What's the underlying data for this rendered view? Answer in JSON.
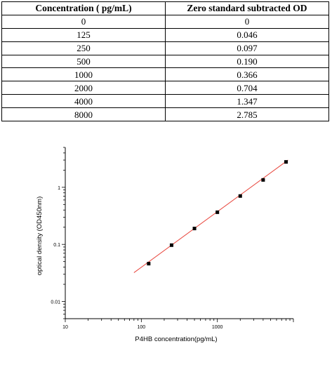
{
  "table": {
    "headers": [
      "Concentration ( pg/mL)",
      "Zero standard subtracted OD"
    ],
    "rows": [
      [
        "0",
        "0"
      ],
      [
        "125",
        "0.046"
      ],
      [
        "250",
        "0.097"
      ],
      [
        "500",
        "0.190"
      ],
      [
        "1000",
        "0.366"
      ],
      [
        "2000",
        "0.704"
      ],
      [
        "4000",
        "1.347"
      ],
      [
        "8000",
        "2.785"
      ]
    ]
  },
  "chart_data": {
    "type": "scatter",
    "xlabel": "P4HB concentration(pg/mL)",
    "ylabel": "optical density (OD450nm)",
    "x_scale": "log",
    "y_scale": "log",
    "xlim": [
      10,
      10000
    ],
    "ylim": [
      0.005,
      5
    ],
    "x_ticks": [
      10,
      100,
      1000
    ],
    "x_tick_labels": [
      "10",
      "100",
      "1000"
    ],
    "y_ticks": [
      0.01,
      0.1,
      1
    ],
    "y_tick_labels": [
      "0.01",
      "0.1",
      "1"
    ],
    "grid": false,
    "points": [
      {
        "x": 125,
        "y": 0.046
      },
      {
        "x": 250,
        "y": 0.097
      },
      {
        "x": 500,
        "y": 0.19
      },
      {
        "x": 1000,
        "y": 0.366
      },
      {
        "x": 2000,
        "y": 0.704
      },
      {
        "x": 4000,
        "y": 1.347
      },
      {
        "x": 8000,
        "y": 2.785
      }
    ],
    "fit_line": {
      "x": [
        80,
        8500
      ],
      "y": [
        0.032,
        3.0
      ]
    },
    "marker_color": "#000000",
    "fit_color": "#e8453c"
  }
}
